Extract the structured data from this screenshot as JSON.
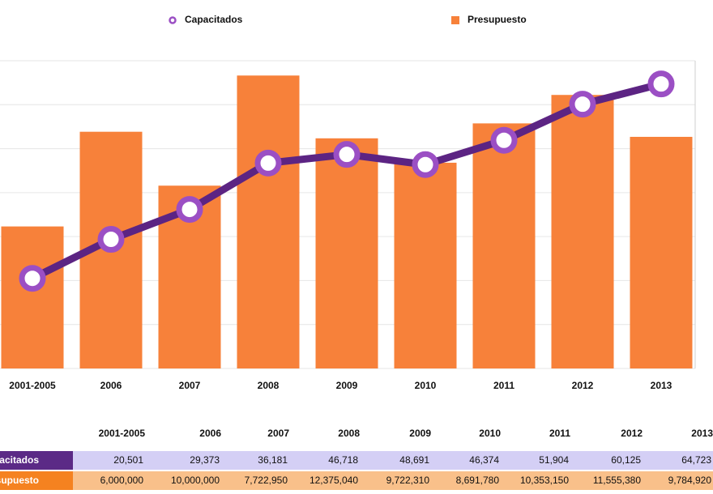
{
  "chart_data": {
    "type": "bar_line",
    "categories": [
      "2001-2005",
      "2006",
      "2007",
      "2008",
      "2009",
      "2010",
      "2011",
      "2012",
      "2013"
    ],
    "series": [
      {
        "name": "Capacitados",
        "type": "line",
        "axis": "y2",
        "color": "#5c2483",
        "marker_color": "#9b4fc4",
        "values": [
          20501,
          29373,
          36181,
          46718,
          48691,
          46374,
          51904,
          60125,
          64723
        ],
        "value_labels": [
          "20,501",
          "29,373",
          "36,181",
          "46,718",
          "48,691",
          "46,374",
          "51,904",
          "60,125",
          "64,723"
        ]
      },
      {
        "name": "Presupuesto",
        "type": "bar",
        "color": "#f7813a",
        "values": [
          6000000,
          10000000,
          7722950,
          12375040,
          9722310,
          8691780,
          10353150,
          11555380,
          9784920
        ],
        "value_labels": [
          "6,000,000",
          "10,000,000",
          "7,722,950",
          "12,375,040",
          "9,722,310",
          "8,691,780",
          "10,353,150",
          "11,555,380",
          "9,784,920"
        ]
      }
    ],
    "ylim": [
      0,
      13000000
    ],
    "y2lim": [
      0,
      70000
    ],
    "grid": true
  }
}
